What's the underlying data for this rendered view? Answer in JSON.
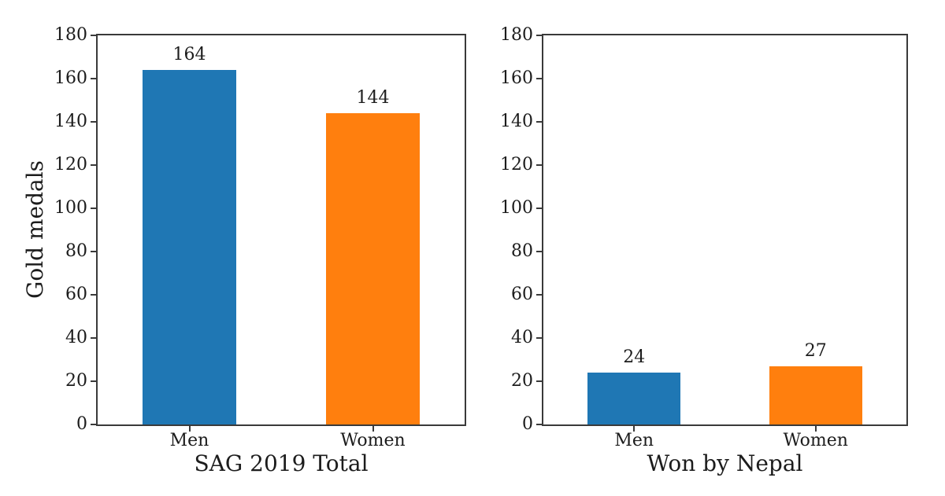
{
  "figure": {
    "background": "#ffffff",
    "text_color": "#1c1c1c",
    "spine_color": "#3a3a3a"
  },
  "chart_data": [
    {
      "type": "bar",
      "categories": [
        "Men",
        "Women"
      ],
      "values": [
        164,
        144
      ],
      "bar_labels": [
        "164",
        "144"
      ],
      "bar_colors": [
        "#1f77b4",
        "#ff7f0e"
      ],
      "xlabel": "SAG 2019 Total",
      "ylabel": "Gold medals",
      "ylim": [
        0,
        180
      ],
      "yticks": [
        0,
        20,
        40,
        60,
        80,
        100,
        120,
        140,
        160,
        180
      ],
      "grid": false,
      "legend": null
    },
    {
      "type": "bar",
      "categories": [
        "Men",
        "Women"
      ],
      "values": [
        24,
        27
      ],
      "bar_labels": [
        "24",
        "27"
      ],
      "bar_colors": [
        "#1f77b4",
        "#ff7f0e"
      ],
      "xlabel": "Won by Nepal",
      "ylabel": "",
      "ylim": [
        0,
        180
      ],
      "yticks": [
        0,
        20,
        40,
        60,
        80,
        100,
        120,
        140,
        160,
        180
      ],
      "grid": false,
      "legend": null
    }
  ]
}
